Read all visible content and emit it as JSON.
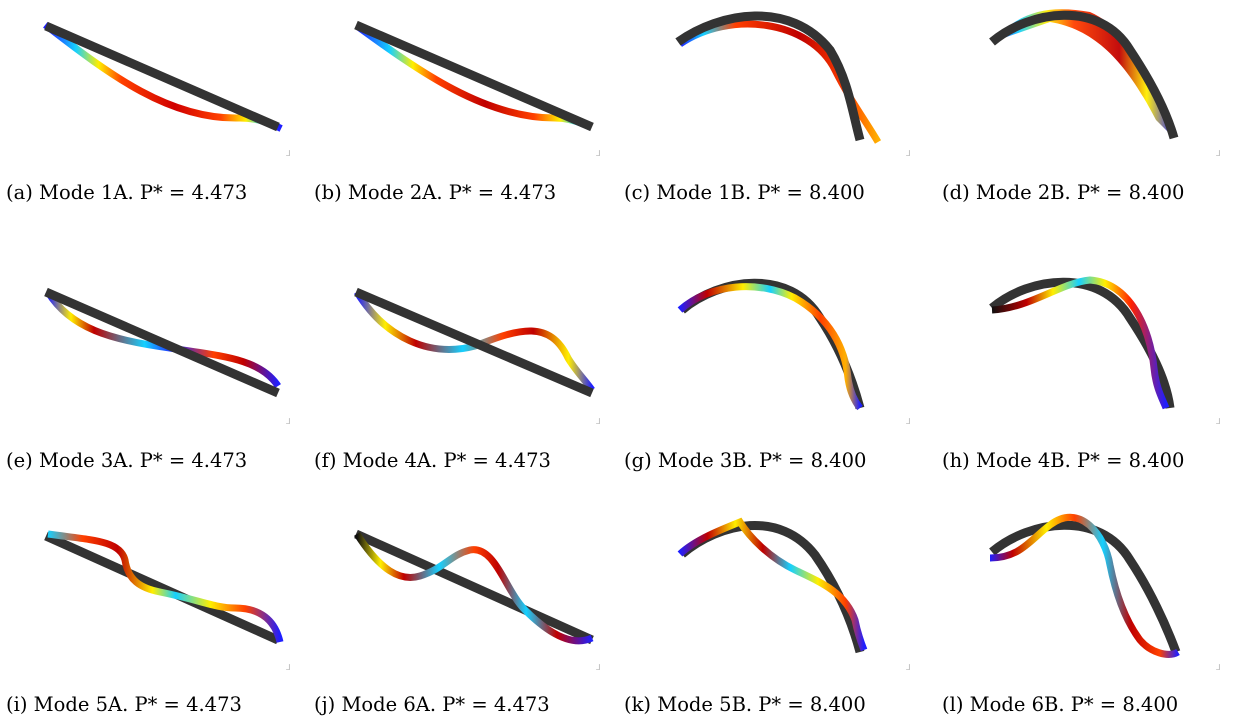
{
  "colors": {
    "beam_undeformed": "#333333",
    "colormap": [
      "#1f1fff",
      "#15d0ff",
      "#ffee00",
      "#ff4000",
      "#c00000",
      "#0f0f0f"
    ]
  },
  "panels": [
    {
      "label": "(a)",
      "caption": "(a) Mode 1A. P* = 4.473",
      "mode": "1A",
      "p_star": 4.473
    },
    {
      "label": "(b)",
      "caption": "(b) Mode 2A. P* = 4.473",
      "mode": "2A",
      "p_star": 4.473
    },
    {
      "label": "(c)",
      "caption": "(c) Mode 1B. P* = 8.400",
      "mode": "1B",
      "p_star": 8.4
    },
    {
      "label": "(d)",
      "caption": "(d) Mode 2B. P* = 8.400",
      "mode": "2B",
      "p_star": 8.4
    },
    {
      "label": "(e)",
      "caption": "(e) Mode 3A. P* = 4.473",
      "mode": "3A",
      "p_star": 4.473
    },
    {
      "label": "(f)",
      "caption": "(f) Mode 4A. P* = 4.473",
      "mode": "4A",
      "p_star": 4.473
    },
    {
      "label": "(g)",
      "caption": "(g) Mode 3B. P* = 8.400",
      "mode": "3B",
      "p_star": 8.4
    },
    {
      "label": "(h)",
      "caption": "(h) Mode 4B. P* = 8.400",
      "mode": "4B",
      "p_star": 8.4
    },
    {
      "label": "(i)",
      "caption": "(i) Mode 5A. P* = 4.473",
      "mode": "5A",
      "p_star": 4.473
    },
    {
      "label": "(j)",
      "caption": "(j) Mode 6A. P* = 4.473",
      "mode": "6A",
      "p_star": 4.473
    },
    {
      "label": "(k)",
      "caption": "(k) Mode 5B. P* = 8.400",
      "mode": "5B",
      "p_star": 8.4
    },
    {
      "label": "(l)",
      "caption": "(l) Mode 6B. P* = 8.400",
      "mode": "6B",
      "p_star": 8.4
    }
  ]
}
